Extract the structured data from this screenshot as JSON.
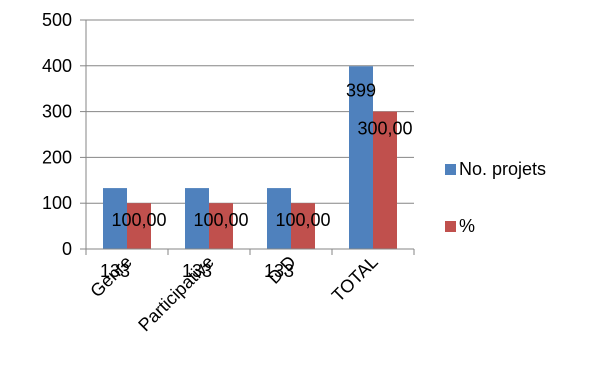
{
  "chart_data": {
    "type": "bar",
    "categories": [
      "Genre",
      "Participative",
      "D.D",
      "TOTAL"
    ],
    "series": [
      {
        "name": "No. projets",
        "values": [
          133,
          133,
          133,
          399
        ],
        "labels": [
          "133",
          "133",
          "133",
          "399"
        ],
        "color": "#4F81BD"
      },
      {
        "name": "%",
        "values": [
          100,
          100,
          100,
          300
        ],
        "labels": [
          "100,00",
          "100,00",
          "100,00",
          "300,00"
        ],
        "color": "#C0504D"
      }
    ],
    "ylim": [
      0,
      500
    ],
    "yticks": [
      "0",
      "100",
      "200",
      "300",
      "400",
      "500"
    ],
    "grid": true,
    "legend_position": "right",
    "title": "",
    "xlabel": "",
    "ylabel": ""
  }
}
